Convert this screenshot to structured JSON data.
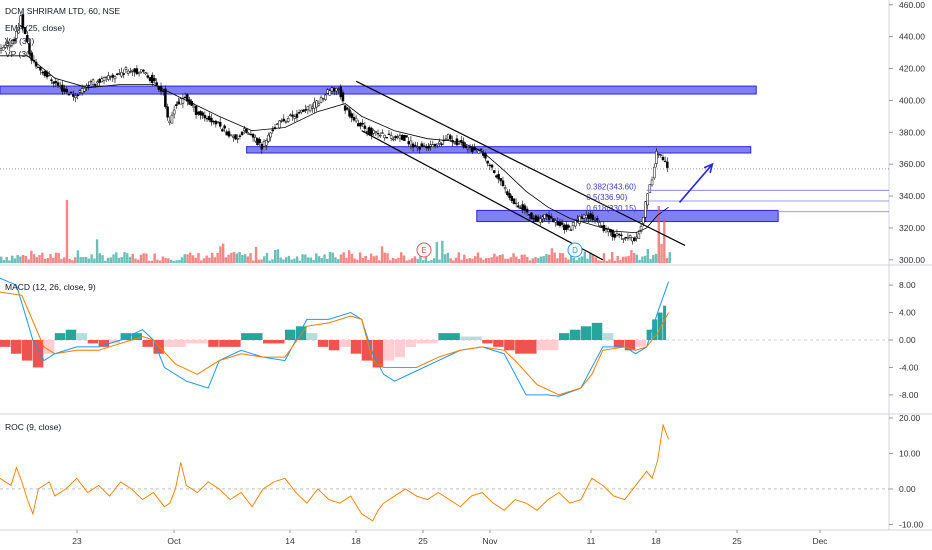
{
  "header": {
    "title": "DCM SHRIRAM LTD, 60, NSE",
    "legend": [
      "EMA (25, close)",
      "Vol (30)",
      "VP (30)"
    ]
  },
  "panes": {
    "macd_label": "MACD (12, 26, close, 9)",
    "roc_label": "ROC (9, close)"
  },
  "markers": {
    "earnings": "E",
    "dividend": "D"
  },
  "colors": {
    "up": "#26a69a",
    "down": "#ef5350",
    "zone": "#5555f0",
    "macd_line": "#2196f3",
    "signal_line": "#f57c00",
    "roc_line": "#f57c00",
    "channel": "#000000",
    "arrow": "#2929d6"
  },
  "chart_data": [
    {
      "type": "candlestick",
      "title": "DCM SHRIRAM LTD, 60, NSE",
      "price_axis": {
        "ticks": [
          "460.00",
          "440.00",
          "420.00",
          "400.00",
          "380.00",
          "360.00",
          "340.00",
          "320.00",
          "300.00"
        ],
        "range": [
          298,
          463
        ]
      },
      "time_axis": {
        "ticks": [
          "23",
          "Oct",
          "14",
          "18",
          "25",
          "Nov",
          "11",
          "18",
          "25",
          "Dec"
        ]
      },
      "last_price": 357,
      "price_path": [
        [
          0,
          430
        ],
        [
          2,
          436
        ],
        [
          3,
          440
        ],
        [
          4,
          452
        ],
        [
          6,
          425
        ],
        [
          8,
          418
        ],
        [
          12,
          406
        ],
        [
          14,
          403
        ],
        [
          16,
          410
        ],
        [
          20,
          414
        ],
        [
          24,
          420
        ],
        [
          27,
          416
        ],
        [
          30,
          406
        ],
        [
          31,
          383
        ],
        [
          32,
          396
        ],
        [
          34,
          402
        ],
        [
          36,
          393
        ],
        [
          40,
          385
        ],
        [
          43,
          376
        ],
        [
          45,
          381
        ],
        [
          48,
          371
        ],
        [
          50,
          382
        ],
        [
          52,
          388
        ],
        [
          55,
          392
        ],
        [
          58,
          398
        ],
        [
          60,
          405
        ],
        [
          62,
          408
        ],
        [
          63,
          396
        ],
        [
          64,
          392
        ],
        [
          66,
          384
        ],
        [
          68,
          380
        ],
        [
          72,
          377
        ],
        [
          74,
          376
        ],
        [
          76,
          371
        ],
        [
          80,
          371
        ],
        [
          82,
          377
        ],
        [
          84,
          373
        ],
        [
          86,
          370
        ],
        [
          88,
          367
        ],
        [
          90,
          357
        ],
        [
          92,
          346
        ],
        [
          94,
          337
        ],
        [
          96,
          331
        ],
        [
          98,
          325
        ],
        [
          100,
          327
        ],
        [
          102,
          323
        ],
        [
          104,
          319
        ],
        [
          106,
          326
        ],
        [
          108,
          328
        ],
        [
          110,
          320
        ],
        [
          112,
          316
        ],
        [
          114,
          314
        ],
        [
          116,
          313
        ],
        [
          117,
          318
        ],
        [
          118,
          335
        ],
        [
          119,
          348
        ],
        [
          120,
          368
        ],
        [
          121,
          364
        ],
        [
          122,
          357
        ]
      ],
      "ema_path": [
        [
          0,
          428
        ],
        [
          5,
          428
        ],
        [
          10,
          414
        ],
        [
          16,
          408
        ],
        [
          22,
          410
        ],
        [
          28,
          410
        ],
        [
          34,
          400
        ],
        [
          40,
          390
        ],
        [
          46,
          381
        ],
        [
          52,
          383
        ],
        [
          58,
          393
        ],
        [
          63,
          398
        ],
        [
          66,
          390
        ],
        [
          72,
          381
        ],
        [
          78,
          376
        ],
        [
          84,
          374
        ],
        [
          88,
          368
        ],
        [
          92,
          356
        ],
        [
          96,
          343
        ],
        [
          100,
          333
        ],
        [
          104,
          326
        ],
        [
          108,
          322
        ],
        [
          112,
          318
        ],
        [
          116,
          317
        ],
        [
          118,
          320
        ],
        [
          120,
          328
        ],
        [
          122,
          333
        ]
      ],
      "volume_spikes": [
        [
          12,
          63
        ],
        [
          50,
          13
        ],
        [
          60,
          11
        ],
        [
          118,
          14
        ],
        [
          120,
          57
        ],
        [
          121,
          44
        ]
      ],
      "zones": [
        {
          "from": 0,
          "to": 138,
          "low": 404,
          "high": 409
        },
        {
          "from": 45,
          "to": 137,
          "low": 367,
          "high": 371
        },
        {
          "from": 87,
          "to": 142,
          "low": 324,
          "high": 331
        }
      ],
      "fib_levels": [
        {
          "label": "0.382(343.60)",
          "price": 343.6
        },
        {
          "label": "0.5(336.90)",
          "price": 336.9
        },
        {
          "label": "0.618(330.15)",
          "price": 330.15
        }
      ],
      "channel": {
        "upper": [
          [
            65,
            412
          ],
          [
            125,
            309
          ]
        ],
        "lower": [
          [
            66,
            381
          ],
          [
            110,
            300
          ]
        ]
      },
      "arrow": {
        "from": [
          124,
          336
        ],
        "to": [
          130,
          360
        ]
      },
      "x_max": 150
    },
    {
      "type": "line",
      "title": "MACD (12, 26, close, 9)",
      "y_axis": {
        "ticks": [
          "8.00",
          "4.00",
          "0.00",
          "-4.00",
          "-8.00"
        ],
        "range": [
          -10.2,
          10.2
        ]
      },
      "macd_path": [
        [
          0,
          9
        ],
        [
          3,
          8
        ],
        [
          6,
          0
        ],
        [
          8,
          -3
        ],
        [
          10,
          -2
        ],
        [
          14,
          -1
        ],
        [
          18,
          -1
        ],
        [
          22,
          0
        ],
        [
          26,
          1.5
        ],
        [
          28,
          0
        ],
        [
          30,
          -4
        ],
        [
          34,
          -6
        ],
        [
          38,
          -7
        ],
        [
          40,
          -3
        ],
        [
          44,
          -1.5
        ],
        [
          48,
          -2.5
        ],
        [
          52,
          -3
        ],
        [
          54,
          0
        ],
        [
          56,
          3
        ],
        [
          60,
          3
        ],
        [
          64,
          4
        ],
        [
          66,
          3
        ],
        [
          68,
          -2
        ],
        [
          70,
          -5
        ],
        [
          72,
          -6
        ],
        [
          76,
          -4.5
        ],
        [
          80,
          -3
        ],
        [
          84,
          -1.5
        ],
        [
          88,
          -1
        ],
        [
          92,
          -2
        ],
        [
          94,
          -5
        ],
        [
          96,
          -8
        ],
        [
          98,
          -8
        ],
        [
          100,
          -8
        ],
        [
          102,
          -8.2
        ],
        [
          106,
          -7
        ],
        [
          108,
          -4
        ],
        [
          110,
          -1
        ],
        [
          114,
          -1
        ],
        [
          116,
          -2
        ],
        [
          118,
          -1
        ],
        [
          120,
          4
        ],
        [
          122,
          8.5
        ]
      ],
      "signal_path": [
        [
          0,
          7
        ],
        [
          4,
          6.5
        ],
        [
          8,
          -1
        ],
        [
          10,
          -2
        ],
        [
          14,
          -1.5
        ],
        [
          18,
          -1.5
        ],
        [
          22,
          -0.5
        ],
        [
          26,
          0.5
        ],
        [
          28,
          0
        ],
        [
          32,
          -3.5
        ],
        [
          36,
          -5
        ],
        [
          40,
          -3
        ],
        [
          44,
          -2
        ],
        [
          48,
          -2.5
        ],
        [
          52,
          -2.5
        ],
        [
          56,
          2
        ],
        [
          60,
          2.5
        ],
        [
          64,
          3.5
        ],
        [
          66,
          3
        ],
        [
          68,
          -3
        ],
        [
          70,
          -4
        ],
        [
          76,
          -4
        ],
        [
          80,
          -2.5
        ],
        [
          84,
          -1.5
        ],
        [
          88,
          -1
        ],
        [
          92,
          -1.5
        ],
        [
          94,
          -3
        ],
        [
          98,
          -6.5
        ],
        [
          102,
          -8
        ],
        [
          106,
          -7
        ],
        [
          108,
          -5
        ],
        [
          110,
          -1.5
        ],
        [
          114,
          -1
        ],
        [
          116,
          -1.5
        ],
        [
          118,
          -1
        ],
        [
          120,
          1
        ],
        [
          122,
          4
        ]
      ],
      "histogram": [
        [
          0,
          -1
        ],
        [
          2,
          -2
        ],
        [
          4,
          -3
        ],
        [
          6,
          -4
        ],
        [
          8,
          -2
        ],
        [
          10,
          1
        ],
        [
          12,
          1.5
        ],
        [
          14,
          1
        ],
        [
          16,
          -0.5
        ],
        [
          18,
          -1
        ],
        [
          20,
          -0.5
        ],
        [
          22,
          1
        ],
        [
          24,
          1
        ],
        [
          26,
          -1
        ],
        [
          28,
          -2
        ],
        [
          30,
          -1
        ],
        [
          34,
          -0.5
        ],
        [
          38,
          -1
        ],
        [
          40,
          -1
        ],
        [
          44,
          1
        ],
        [
          48,
          -0.5
        ],
        [
          52,
          1.5
        ],
        [
          54,
          2
        ],
        [
          56,
          1
        ],
        [
          58,
          -1
        ],
        [
          60,
          -1.5
        ],
        [
          62,
          -1
        ],
        [
          64,
          -2
        ],
        [
          66,
          -3
        ],
        [
          68,
          -4
        ],
        [
          70,
          -3
        ],
        [
          72,
          -2.5
        ],
        [
          74,
          -1
        ],
        [
          76,
          -0.5
        ],
        [
          80,
          1
        ],
        [
          84,
          0.5
        ],
        [
          88,
          -0.5
        ],
        [
          90,
          -1
        ],
        [
          92,
          -1.5
        ],
        [
          94,
          -2
        ],
        [
          98,
          -1.5
        ],
        [
          102,
          1
        ],
        [
          104,
          1.5
        ],
        [
          106,
          2
        ],
        [
          108,
          2.5
        ],
        [
          110,
          1
        ],
        [
          112,
          -1
        ],
        [
          114,
          -1.5
        ],
        [
          116,
          -1
        ],
        [
          118,
          1.5
        ],
        [
          119,
          3
        ],
        [
          120,
          4
        ],
        [
          121,
          5
        ]
      ]
    },
    {
      "type": "line",
      "title": "ROC (9, close)",
      "y_axis": {
        "ticks": [
          "20.00",
          "10.00",
          "0.00",
          "-10.00"
        ],
        "range": [
          -11,
          20
        ]
      },
      "roc_path": [
        [
          0,
          3
        ],
        [
          2,
          1
        ],
        [
          3,
          6
        ],
        [
          4,
          2
        ],
        [
          5,
          -3
        ],
        [
          6,
          -7
        ],
        [
          7,
          0
        ],
        [
          9,
          2
        ],
        [
          10,
          -2
        ],
        [
          12,
          0
        ],
        [
          14,
          3
        ],
        [
          16,
          -1
        ],
        [
          18,
          1
        ],
        [
          20,
          -2
        ],
        [
          22,
          2
        ],
        [
          24,
          0
        ],
        [
          26,
          -3
        ],
        [
          28,
          -1
        ],
        [
          30,
          -5
        ],
        [
          31,
          -4
        ],
        [
          32,
          0
        ],
        [
          33,
          7.5
        ],
        [
          34,
          1
        ],
        [
          36,
          -1
        ],
        [
          38,
          2
        ],
        [
          40,
          0
        ],
        [
          42,
          -3
        ],
        [
          44,
          -1
        ],
        [
          46,
          -5
        ],
        [
          48,
          0
        ],
        [
          50,
          2
        ],
        [
          52,
          3
        ],
        [
          54,
          -1
        ],
        [
          56,
          -4
        ],
        [
          58,
          0
        ],
        [
          60,
          -3
        ],
        [
          62,
          -4
        ],
        [
          64,
          -2
        ],
        [
          66,
          -7
        ],
        [
          68,
          -9
        ],
        [
          69,
          -6
        ],
        [
          70,
          -4
        ],
        [
          72,
          -2
        ],
        [
          74,
          0
        ],
        [
          76,
          -2
        ],
        [
          78,
          -3
        ],
        [
          80,
          -1
        ],
        [
          82,
          -3
        ],
        [
          84,
          -5
        ],
        [
          86,
          -2
        ],
        [
          88,
          -1
        ],
        [
          90,
          -4
        ],
        [
          92,
          -6
        ],
        [
          94,
          -3
        ],
        [
          96,
          -4
        ],
        [
          98,
          -6
        ],
        [
          100,
          -3
        ],
        [
          102,
          -1
        ],
        [
          104,
          -4
        ],
        [
          106,
          -3
        ],
        [
          108,
          3
        ],
        [
          110,
          1
        ],
        [
          112,
          -2
        ],
        [
          114,
          -3
        ],
        [
          116,
          1
        ],
        [
          118,
          5
        ],
        [
          119,
          3
        ],
        [
          120,
          8
        ],
        [
          121,
          18
        ],
        [
          122,
          14
        ]
      ]
    }
  ]
}
